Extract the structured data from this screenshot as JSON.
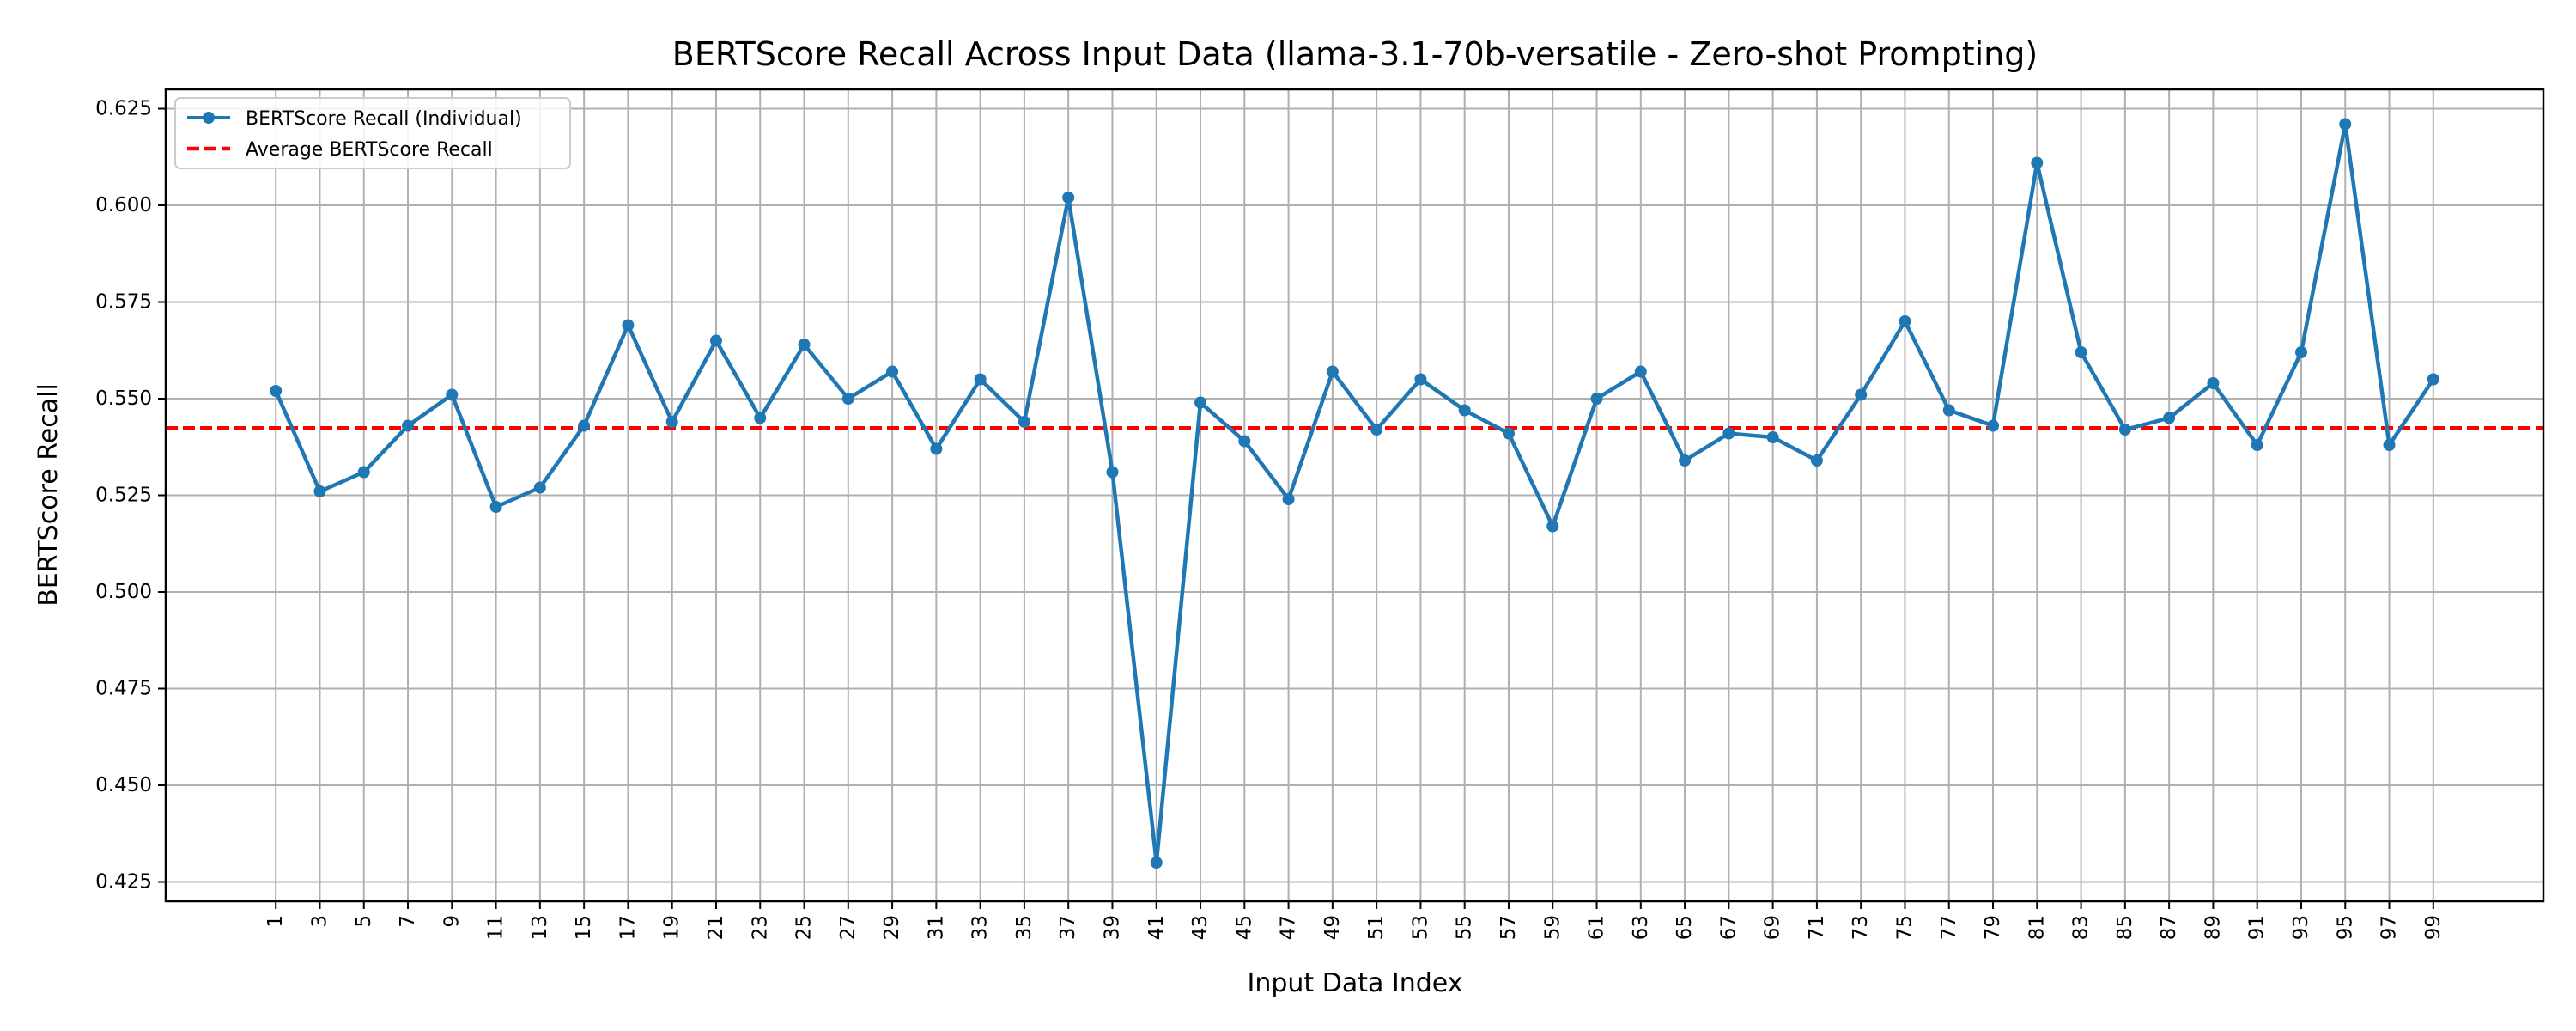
{
  "chart_data": {
    "type": "line",
    "title": "BERTScore Recall Across Input Data (llama-3.1-70b-versatile - Zero-shot Prompting)",
    "xlabel": "Input Data Index",
    "ylabel": "BERTScore Recall",
    "x": [
      1,
      3,
      5,
      7,
      9,
      11,
      13,
      15,
      17,
      19,
      21,
      23,
      25,
      27,
      29,
      31,
      33,
      35,
      37,
      39,
      41,
      43,
      45,
      47,
      49,
      51,
      53,
      55,
      57,
      59,
      61,
      63,
      65,
      67,
      69,
      71,
      73,
      75,
      77,
      79,
      81,
      83,
      85,
      87,
      89,
      91,
      93,
      95,
      97,
      99
    ],
    "x_ticks": [
      "1",
      "3",
      "5",
      "7",
      "9",
      "11",
      "13",
      "15",
      "17",
      "19",
      "21",
      "23",
      "25",
      "27",
      "29",
      "31",
      "33",
      "35",
      "37",
      "39",
      "41",
      "43",
      "45",
      "47",
      "49",
      "51",
      "53",
      "55",
      "57",
      "59",
      "61",
      "63",
      "65",
      "67",
      "69",
      "71",
      "73",
      "75",
      "77",
      "79",
      "81",
      "83",
      "85",
      "87",
      "89",
      "91",
      "93",
      "95",
      "97",
      "99"
    ],
    "xlim": [
      -4,
      104
    ],
    "y_ticks": [
      "0.425",
      "0.450",
      "0.475",
      "0.500",
      "0.525",
      "0.550",
      "0.575",
      "0.600",
      "0.625"
    ],
    "ylim": [
      0.42,
      0.63
    ],
    "grid": true,
    "legend_position": "top-left",
    "series": [
      {
        "name": "BERTScore Recall (Individual)",
        "color": "#1f77b4",
        "style": "solid-with-markers",
        "values": [
          0.552,
          0.526,
          0.531,
          0.543,
          0.551,
          0.522,
          0.527,
          0.543,
          0.569,
          0.544,
          0.565,
          0.545,
          0.564,
          0.55,
          0.557,
          0.537,
          0.555,
          0.544,
          0.602,
          0.531,
          0.43,
          0.549,
          0.539,
          0.524,
          0.557,
          0.542,
          0.555,
          0.547,
          0.541,
          0.517,
          0.55,
          0.557,
          0.534,
          0.541,
          0.54,
          0.534,
          0.551,
          0.57,
          0.547,
          0.543,
          0.611,
          0.562,
          0.542,
          0.545,
          0.554,
          0.538,
          0.562,
          0.621,
          0.538,
          0.555
        ]
      }
    ],
    "reference_lines": [
      {
        "name": "Average BERTScore Recall",
        "color": "#ff0000",
        "style": "dashed",
        "value": 0.5424
      }
    ]
  }
}
